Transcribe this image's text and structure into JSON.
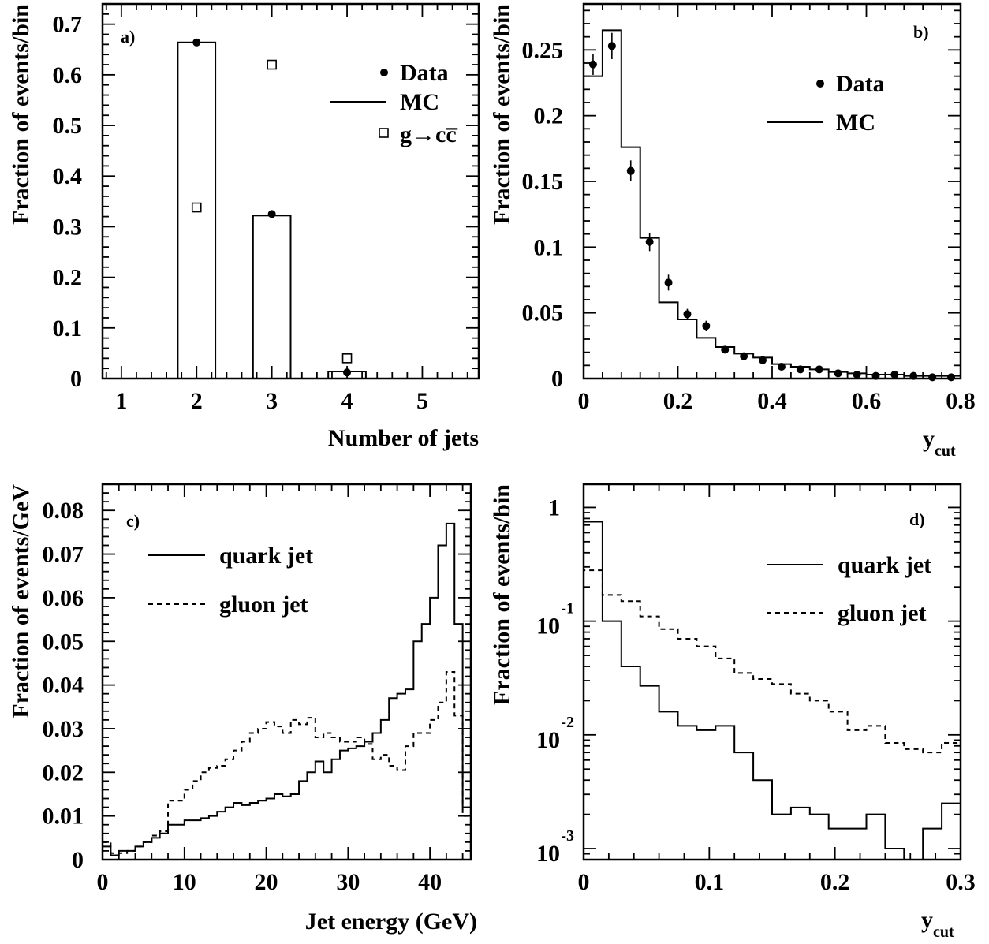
{
  "chart_data": [
    {
      "type": "bar",
      "panel_label": "a)",
      "xlabel": "Number of jets",
      "ylabel": "Fraction of events/bin",
      "xlim": [
        0.75,
        5.75
      ],
      "ylim": [
        0,
        0.74
      ],
      "xticks": [
        "1",
        "2",
        "3",
        "4",
        "5"
      ],
      "yticks": [
        "0",
        "0.1",
        "0.2",
        "0.3",
        "0.4",
        "0.5",
        "0.6",
        "0.7"
      ],
      "legend_position": "top-right",
      "legend": [
        "Data",
        "MC",
        "g→cc̅"
      ],
      "mc_bins": [
        {
          "x0": 1.75,
          "x1": 2.25,
          "y": 0.664
        },
        {
          "x0": 2.75,
          "x1": 3.25,
          "y": 0.322
        },
        {
          "x0": 3.75,
          "x1": 4.25,
          "y": 0.014
        }
      ],
      "data_points": [
        {
          "x": 2,
          "y": 0.664
        },
        {
          "x": 3,
          "y": 0.325
        },
        {
          "x": 4,
          "y": 0.012
        }
      ],
      "gcc_points": [
        {
          "x": 2,
          "y": 0.338
        },
        {
          "x": 3,
          "y": 0.62
        },
        {
          "x": 4,
          "y": 0.04
        }
      ]
    },
    {
      "type": "line",
      "panel_label": "b)",
      "xlabel": "y",
      "xlabel_sub": "cut",
      "ylabel": "Fraction of events/bin",
      "xlim": [
        0,
        0.8
      ],
      "ylim": [
        0,
        0.285
      ],
      "xticks": [
        "0",
        "0.2",
        "0.4",
        "0.6",
        "0.8"
      ],
      "yticks": [
        "0",
        "0.05",
        "0.1",
        "0.15",
        "0.2",
        "0.25"
      ],
      "legend_position": "top-right",
      "legend": [
        "Data",
        "MC"
      ],
      "mc_edges": [
        0,
        0.04,
        0.08,
        0.12,
        0.16,
        0.2,
        0.24,
        0.28,
        0.32,
        0.36,
        0.4,
        0.44,
        0.48,
        0.52,
        0.56,
        0.6,
        0.64,
        0.68,
        0.72,
        0.76,
        0.8
      ],
      "mc_values": [
        0.23,
        0.265,
        0.176,
        0.107,
        0.058,
        0.045,
        0.031,
        0.024,
        0.019,
        0.016,
        0.011,
        0.009,
        0.007,
        0.005,
        0.004,
        0.003,
        0.003,
        0.002,
        0.002,
        0.002
      ],
      "data_x": [
        0.02,
        0.06,
        0.1,
        0.14,
        0.18,
        0.22,
        0.26,
        0.3,
        0.34,
        0.38,
        0.42,
        0.46,
        0.5,
        0.54,
        0.58,
        0.62,
        0.66,
        0.7,
        0.74,
        0.78
      ],
      "data_y": [
        0.239,
        0.253,
        0.158,
        0.104,
        0.073,
        0.049,
        0.04,
        0.022,
        0.017,
        0.014,
        0.009,
        0.007,
        0.007,
        0.004,
        0.003,
        0.002,
        0.003,
        0.002,
        0.001,
        0.001
      ],
      "data_err": [
        0.008,
        0.01,
        0.008,
        0.007,
        0.006,
        0.004,
        0.004,
        0.002,
        0.002,
        0.002,
        0.001,
        0.001,
        0.001,
        0.001,
        0.001,
        0.001,
        0.001,
        0.001,
        0.001,
        0.001
      ]
    },
    {
      "type": "line",
      "panel_label": "c)",
      "xlabel": "Jet energy (GeV)",
      "ylabel": "Fraction of events/GeV",
      "xlim": [
        0,
        45
      ],
      "ylim": [
        0,
        0.086
      ],
      "xticks": [
        "0",
        "10",
        "20",
        "30",
        "40"
      ],
      "yticks": [
        "0",
        "0.01",
        "0.02",
        "0.03",
        "0.04",
        "0.05",
        "0.06",
        "0.07",
        "0.08"
      ],
      "legend_position": "top-left",
      "series": [
        {
          "name": "quark jet",
          "style": "solid",
          "edges": [
            0,
            1,
            2,
            3,
            4,
            5,
            6,
            7,
            8,
            9,
            10,
            11,
            12,
            13,
            14,
            15,
            16,
            17,
            18,
            19,
            20,
            21,
            22,
            23,
            24,
            25,
            26,
            27,
            28,
            29,
            30,
            31,
            32,
            33,
            34,
            35,
            36,
            37,
            38,
            39,
            40,
            41,
            42,
            43,
            44,
            45
          ],
          "values": [
            0.003,
            0.001,
            0.002,
            0.002,
            0.003,
            0.004,
            0.005,
            0.006,
            0.008,
            0.008,
            0.009,
            0.009,
            0.0095,
            0.01,
            0.011,
            0.012,
            0.013,
            0.0125,
            0.013,
            0.0135,
            0.014,
            0.015,
            0.0145,
            0.015,
            0.018,
            0.02,
            0.0225,
            0.02,
            0.023,
            0.025,
            0.0255,
            0.026,
            0.027,
            0.029,
            0.032,
            0.037,
            0.038,
            0.039,
            0.05,
            0.054,
            0.06,
            0.072,
            0.077,
            0.054,
            0.012
          ]
        },
        {
          "name": "gluon jet",
          "style": "dashed",
          "edges": [
            0,
            1,
            2,
            3,
            4,
            5,
            6,
            7,
            8,
            9,
            10,
            11,
            12,
            13,
            14,
            15,
            16,
            17,
            18,
            19,
            20,
            21,
            22,
            23,
            24,
            25,
            26,
            27,
            28,
            29,
            30,
            31,
            32,
            33,
            34,
            35,
            36,
            37,
            38,
            39,
            40,
            41,
            42,
            43,
            44,
            45
          ],
          "values": [
            0.004,
            0.0015,
            0.0015,
            0.002,
            0.003,
            0.004,
            0.0055,
            0.0065,
            0.0135,
            0.0135,
            0.016,
            0.018,
            0.02,
            0.021,
            0.0215,
            0.023,
            0.025,
            0.027,
            0.029,
            0.03,
            0.0315,
            0.0305,
            0.029,
            0.032,
            0.031,
            0.0325,
            0.028,
            0.029,
            0.028,
            0.027,
            0.027,
            0.028,
            0.0265,
            0.023,
            0.024,
            0.0215,
            0.0205,
            0.026,
            0.029,
            0.029,
            0.032,
            0.036,
            0.043,
            0.033,
            0.01
          ]
        }
      ]
    },
    {
      "type": "line",
      "panel_label": "d)",
      "xlabel": "y",
      "xlabel_sub": "cut",
      "ylabel": "Fraction of events/bin",
      "xlim": [
        0,
        0.3
      ],
      "log_ylim": [
        0.0008,
        1.6
      ],
      "yscale": "log",
      "xticks": [
        "0",
        "0.1",
        "0.2",
        "0.3"
      ],
      "yticks": [
        {
          "base": "1",
          "exp": ""
        },
        {
          "base": "10",
          "exp": "-1"
        },
        {
          "base": "10",
          "exp": "-2"
        },
        {
          "base": "10",
          "exp": "-3"
        }
      ],
      "legend_position": "top-right",
      "series": [
        {
          "name": "quark jet",
          "style": "solid",
          "edges": [
            0,
            0.015,
            0.03,
            0.045,
            0.06,
            0.075,
            0.09,
            0.105,
            0.12,
            0.135,
            0.15,
            0.165,
            0.18,
            0.195,
            0.21,
            0.225,
            0.24,
            0.255,
            0.27,
            0.285,
            0.3
          ],
          "values": [
            0.75,
            0.1,
            0.04,
            0.027,
            0.016,
            0.012,
            0.011,
            0.012,
            0.007,
            0.004,
            0.002,
            0.0023,
            0.002,
            0.0015,
            0.0015,
            0.002,
            0.001,
            0.0007,
            0.0015,
            0.0025
          ]
        },
        {
          "name": "gluon jet",
          "style": "dashed",
          "edges": [
            0,
            0.015,
            0.03,
            0.045,
            0.06,
            0.075,
            0.09,
            0.105,
            0.12,
            0.135,
            0.15,
            0.165,
            0.18,
            0.195,
            0.21,
            0.225,
            0.24,
            0.255,
            0.27,
            0.285,
            0.3
          ],
          "values": [
            0.28,
            0.17,
            0.15,
            0.11,
            0.085,
            0.07,
            0.06,
            0.047,
            0.035,
            0.031,
            0.028,
            0.023,
            0.02,
            0.016,
            0.011,
            0.012,
            0.0085,
            0.0075,
            0.007,
            0.0085
          ]
        }
      ]
    }
  ]
}
